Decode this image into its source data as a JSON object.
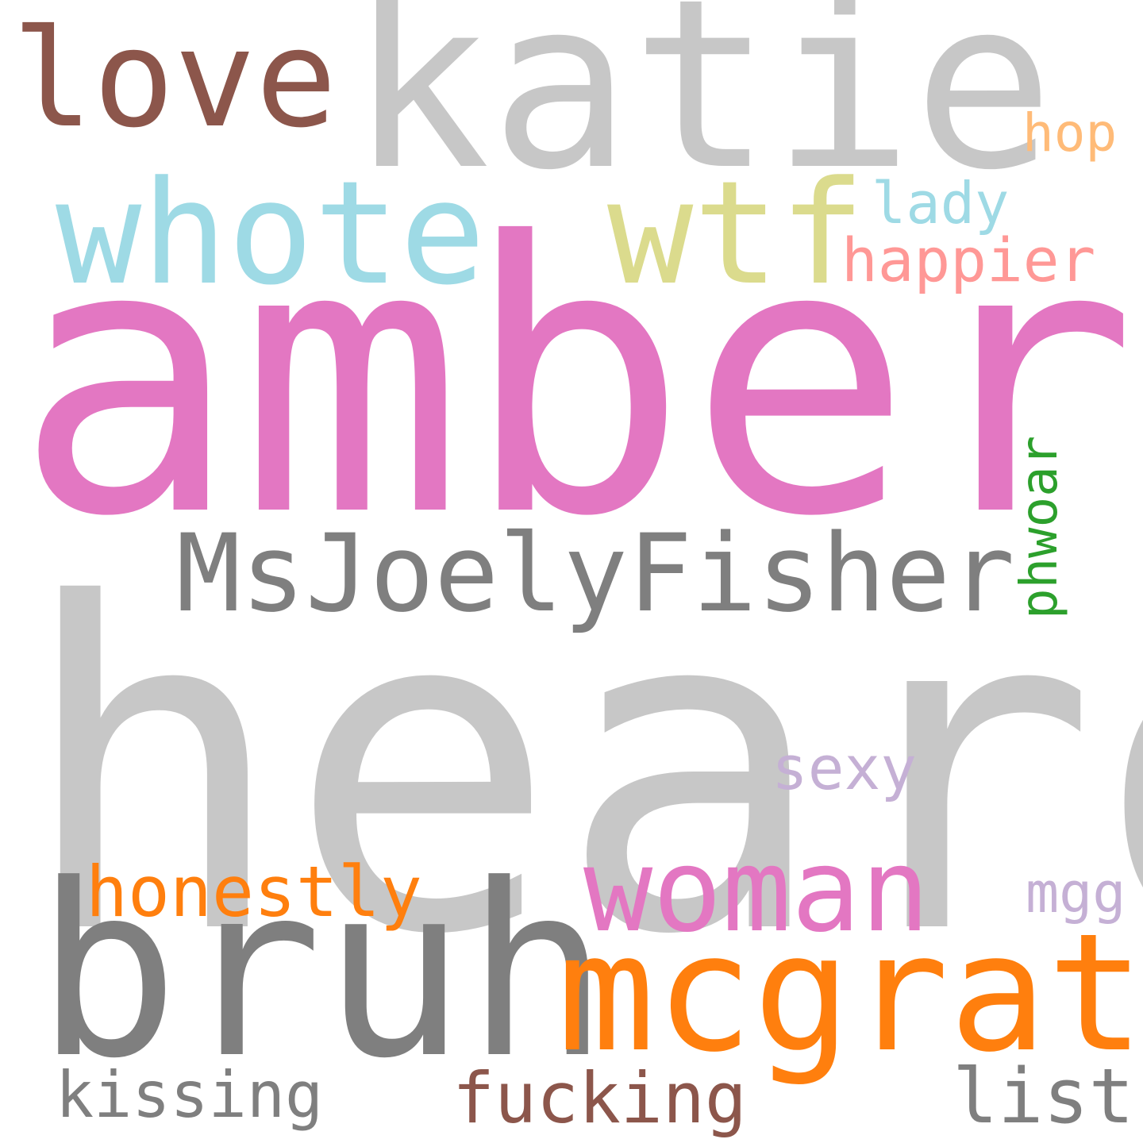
{
  "background": "#ffffff",
  "words": [
    {
      "id": "heard",
      "text": "heard",
      "color": "#c7c7c7"
    },
    {
      "id": "amber",
      "text": "amber",
      "color": "#e377c2"
    },
    {
      "id": "katie",
      "text": "katie",
      "color": "#c7c7c7"
    },
    {
      "id": "bruh",
      "text": "bruh",
      "color": "#7f7f7f"
    },
    {
      "id": "mcgrath",
      "text": "mcgrath",
      "color": "#ff7f0e"
    },
    {
      "id": "whote",
      "text": "whote",
      "color": "#9edae5"
    },
    {
      "id": "love",
      "text": "love",
      "color": "#8c564b"
    },
    {
      "id": "wtf",
      "text": "wtf",
      "color": "#dbdb8d"
    },
    {
      "id": "woman",
      "text": "woman",
      "color": "#e377c2"
    },
    {
      "id": "msjoelyfisher",
      "text": "MsJoelyFisher",
      "color": "#7f7f7f"
    },
    {
      "id": "honestly",
      "text": "honestly",
      "color": "#ff7f0e"
    },
    {
      "id": "happier",
      "text": "happier",
      "color": "#ff9896"
    },
    {
      "id": "sexy",
      "text": "sexy",
      "color": "#c5b0d5"
    },
    {
      "id": "fucking",
      "text": "fucking",
      "color": "#8c564b"
    },
    {
      "id": "list",
      "text": "list",
      "color": "#7f7f7f"
    },
    {
      "id": "kissing",
      "text": "kissing",
      "color": "#7f7f7f"
    },
    {
      "id": "lady",
      "text": "lady",
      "color": "#9edae5"
    },
    {
      "id": "hop",
      "text": "hop",
      "color": "#ffbb78"
    },
    {
      "id": "mgg",
      "text": "mgg",
      "color": "#c5b0d5"
    },
    {
      "id": "phwoar",
      "text": "phwoar",
      "color": "#2ca02c"
    }
  ]
}
